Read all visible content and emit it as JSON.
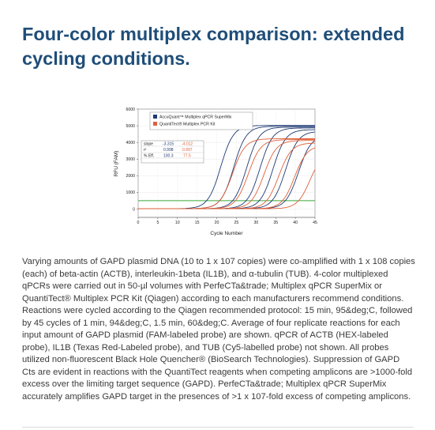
{
  "page": {
    "title": "Four-color multiplex comparison: extended cycling conditions.",
    "caption": "Varying amounts of GAPD plasmid DNA (10 to 1 x 107 copies) were co-amplified with 1 x 108 copies (each) of beta-actin (ACTB), interleukin-1beta (IL1B), and α-tubulin (TUB). 4-color multiplexed qPCRs were carried out in 50-µl volumes with PerfeCTa&trade; Multiplex qPCR SuperMix or QuantiTect® Multiplex PCR Kit (Qiagen) according to each manufacturers recommend conditions. Reactions were cycled according to the Qiagen recommended protocol: 15 min, 95&deg;C, followed by 45 cycles of 1 min, 94&deg;C, 1.5 min, 60&deg;C. Average of four replicate reactions for each input amount of GAPD plasmid (FAM-labeled probe) are shown. qPCR of ACTB (HEX-labeled probe), IL1B (Texas Red-Labeled probe), and TUB (Cy5-labelled probe) not shown. All probes utilized non-fluorescent Black Hole Quencher® (BioSearch Technologies). Suppression of GAPD Cts are evident in reactions with the QuantiTect reagents when competing amplicons are >1000-fold excess over the limiting target sequence (GAPD). PerfeCTa&trade; Multiplex qPCR SuperMix accurately amplifies GAPD target in the presences of >1 x 107-fold excess of competing amplicons."
  },
  "chart_data": {
    "type": "line",
    "xlabel": "Cycle Number",
    "ylabel": "RFU (FAM)",
    "xlim": [
      0,
      45
    ],
    "ylim": [
      -500,
      6000
    ],
    "xticks": [
      0,
      5,
      10,
      15,
      20,
      25,
      30,
      35,
      40,
      45
    ],
    "yticks": [
      0,
      1000,
      2000,
      3000,
      4000,
      5000,
      6000
    ],
    "threshold": 500,
    "legend_position": "top",
    "stats_table": {
      "row_labels": [
        "slope",
        "r²",
        "% Eff."
      ],
      "columns": [
        {
          "values": [
            "-3.315",
            "0.998",
            "100.3"
          ],
          "color": "#1f3a73"
        },
        {
          "values": [
            "-4.012",
            "0.997",
            "77.5"
          ],
          "color": "#e0603a"
        }
      ]
    },
    "colors": {
      "threshold": "#3aa63a",
      "series1": "#1f3a73",
      "series2": "#e0603a"
    },
    "series": [
      {
        "name": "AccuQuant™ Multiplex qPCR SuperMix",
        "color": "#1f3a73",
        "curves": [
          {
            "ct": 17.5,
            "plateau": 5000
          },
          {
            "ct": 20.8,
            "plateau": 4950
          },
          {
            "ct": 24.1,
            "plateau": 4900
          },
          {
            "ct": 27.5,
            "plateau": 4850
          },
          {
            "ct": 30.8,
            "plateau": 4750
          },
          {
            "ct": 34.0,
            "plateau": 4650
          },
          {
            "ct": 37.3,
            "plateau": 4400
          }
        ]
      },
      {
        "name": "QuantiTect® Multiplex PCR Kit",
        "color": "#e0603a",
        "curves": [
          {
            "ct": 20.5,
            "plateau": 4200
          },
          {
            "ct": 24.5,
            "plateau": 4150
          },
          {
            "ct": 28.5,
            "plateau": 4100
          },
          {
            "ct": 32.3,
            "plateau": 3950
          },
          {
            "ct": 36.3,
            "plateau": 3800
          },
          {
            "ct": 40.2,
            "plateau": 3400
          }
        ]
      }
    ]
  }
}
